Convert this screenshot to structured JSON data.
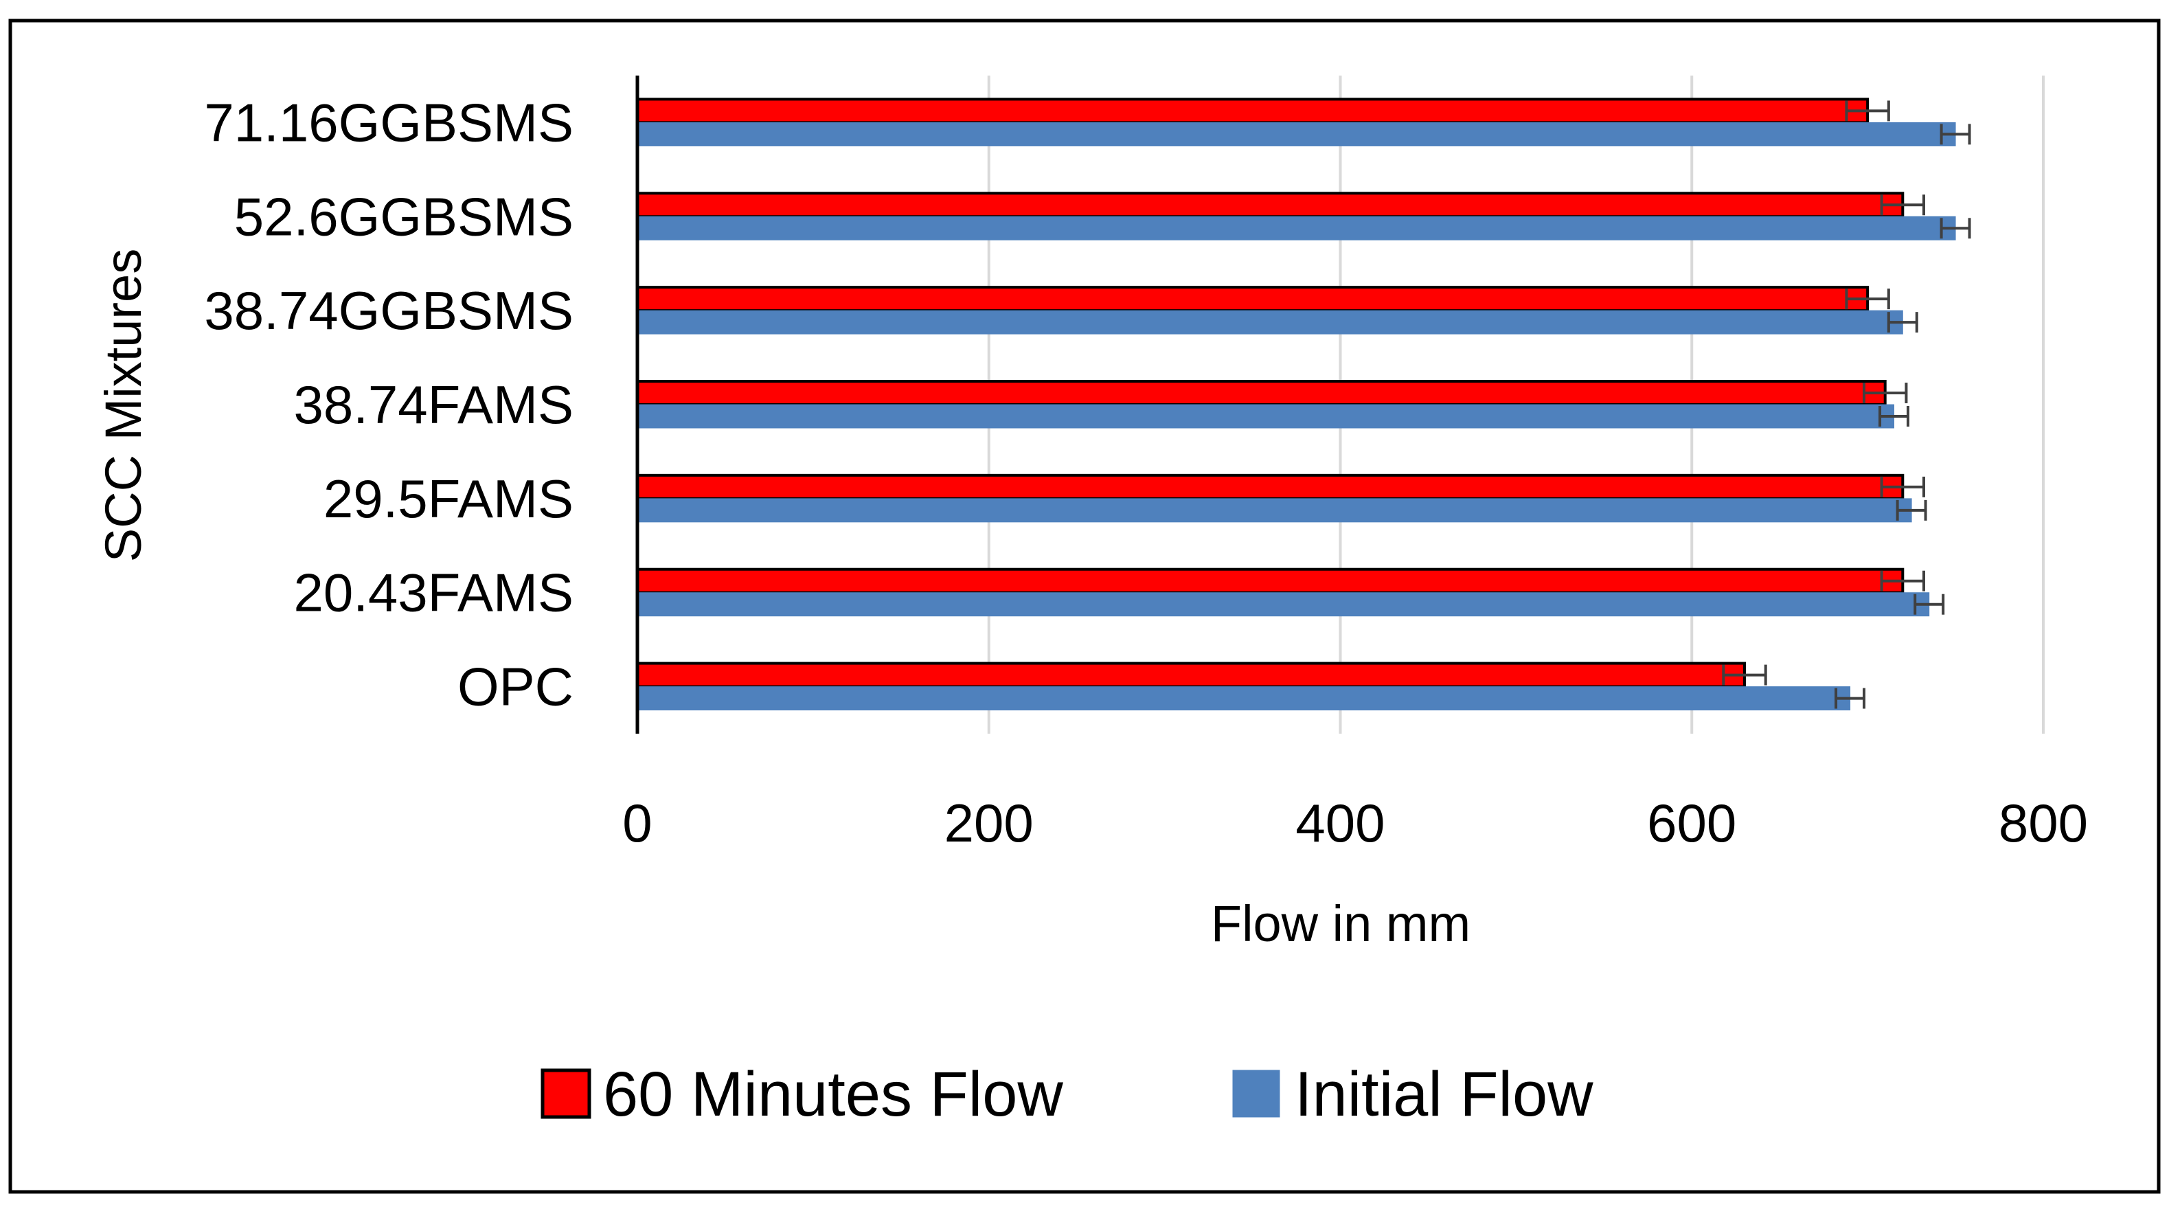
{
  "chart_data": {
    "type": "bar",
    "orientation": "horizontal",
    "title": "",
    "xlabel": "Flow in mm",
    "ylabel": "SCC Mixtures",
    "xlim": [
      0,
      800
    ],
    "x_ticks": [
      "0",
      "200",
      "400",
      "600",
      "800"
    ],
    "grid": "vertical",
    "legend_position": "bottom",
    "categories": [
      "OPC",
      "20.43FAMS",
      "29.5FAMS",
      "38.74FAMS",
      "38.74GGBSMS",
      "52.6GGBSMS",
      "71.16GGBSMS"
    ],
    "series": [
      {
        "name": "60 Minutes Flow",
        "color": "#ff0000",
        "border": "#000000",
        "values": [
          630,
          720,
          720,
          710,
          700,
          720,
          700
        ],
        "error": [
          12,
          12,
          12,
          12,
          12,
          12,
          12
        ]
      },
      {
        "name": "Initial Flow",
        "color": "#4f81bd",
        "border": "#4f81bd",
        "values": [
          690,
          735,
          725,
          715,
          720,
          750,
          750
        ],
        "error": [
          8,
          8,
          8,
          8,
          8,
          8,
          8
        ]
      }
    ]
  }
}
